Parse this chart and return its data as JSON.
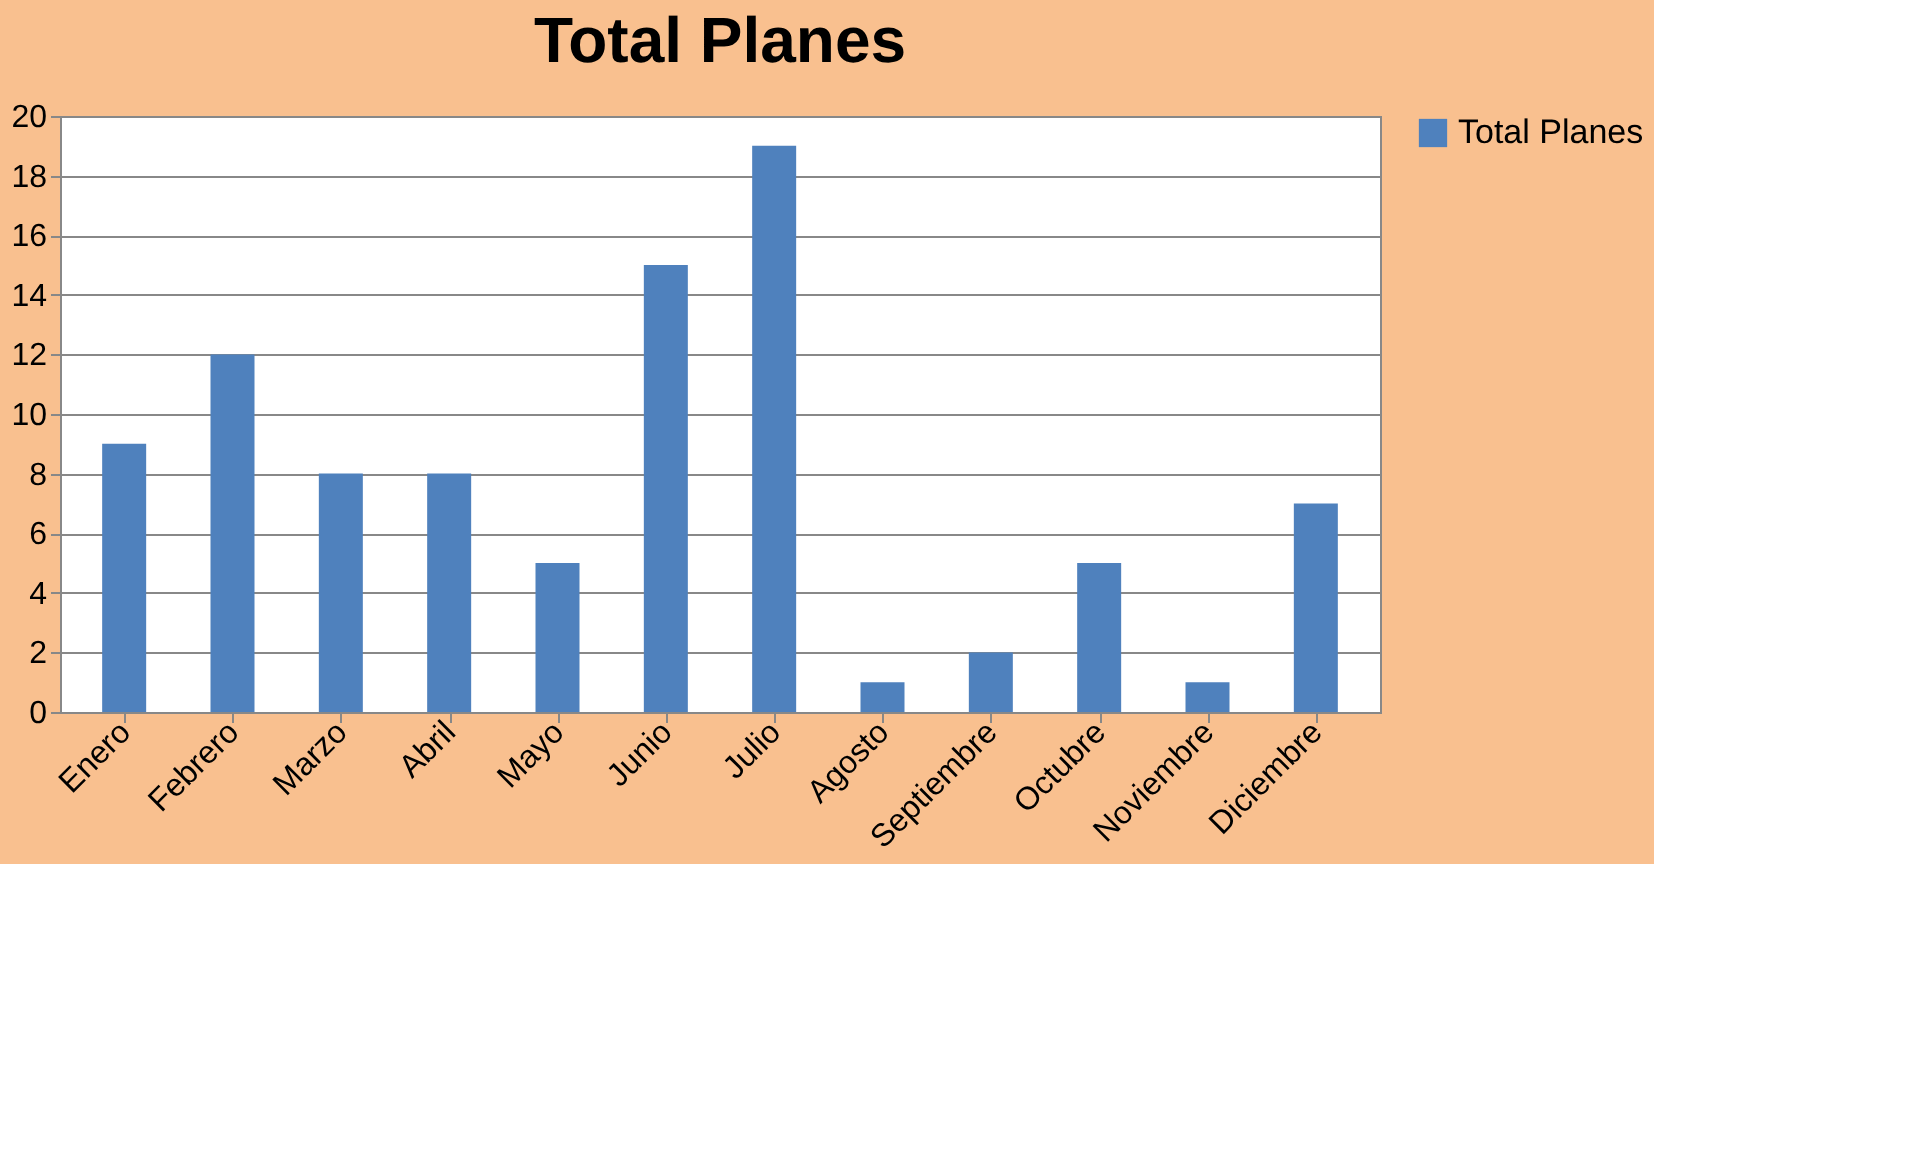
{
  "chart_data": {
    "type": "bar",
    "title": "Total Planes",
    "categories": [
      "Enero",
      "Febrero",
      "Marzo",
      "Abril",
      "Mayo",
      "Junio",
      "Julio",
      "Agosto",
      "Septiembre",
      "Octubre",
      "Noviembre",
      "Diciembre"
    ],
    "series": [
      {
        "name": "Total Planes",
        "color": "#4f81bd",
        "values": [
          9,
          12,
          8,
          8,
          5,
          15,
          19,
          1,
          2,
          5,
          1,
          7
        ]
      }
    ],
    "ylim": [
      0,
      20
    ],
    "yticks": [
      0,
      2,
      4,
      6,
      8,
      10,
      12,
      14,
      16,
      18,
      20
    ],
    "grid": "y",
    "legend": "right"
  }
}
